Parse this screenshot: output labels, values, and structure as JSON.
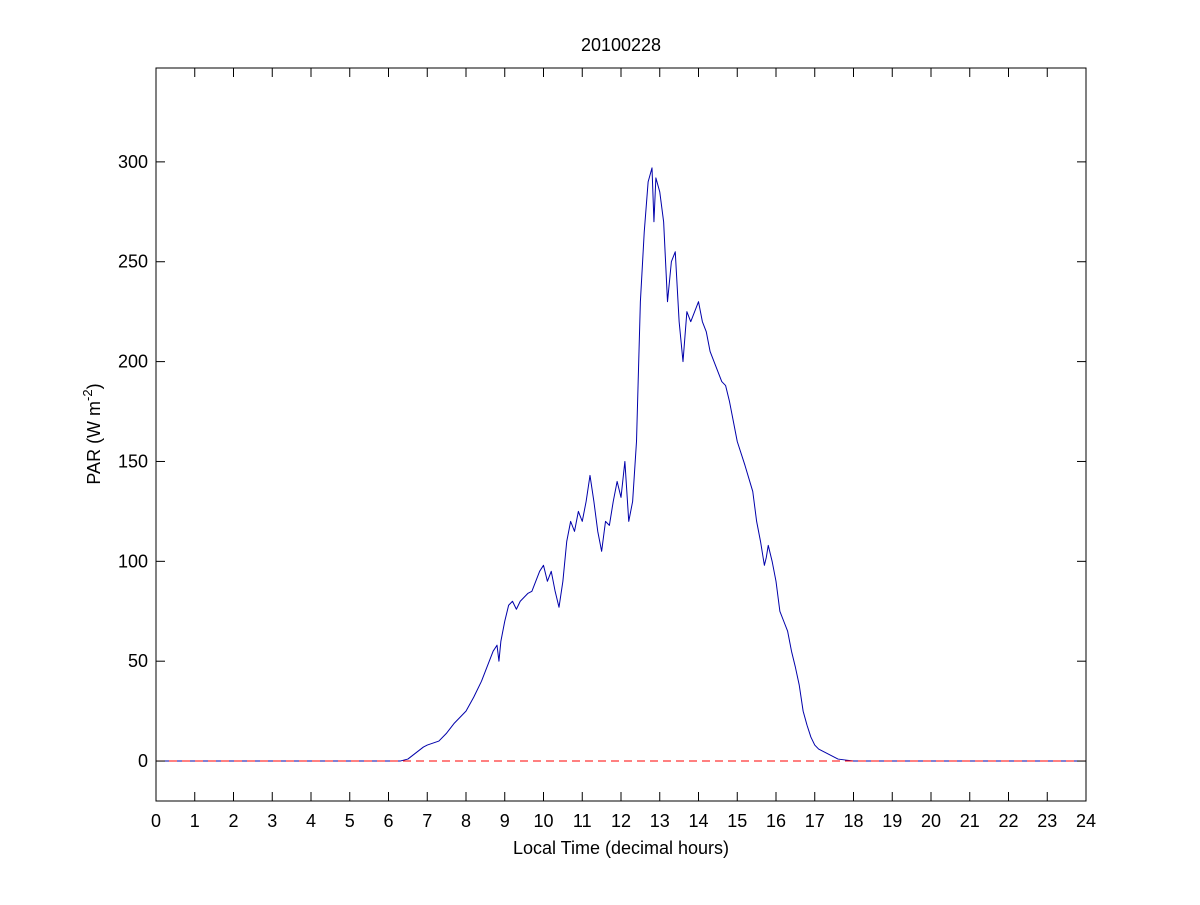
{
  "chart_data": {
    "type": "line",
    "title": "20100228",
    "xlabel": "Local Time (decimal hours)",
    "ylabel": {
      "main": "PAR (W m",
      "superscript": "-2",
      "close": ")"
    },
    "xlim": [
      0,
      24
    ],
    "ylim": [
      -20,
      347
    ],
    "xticks": [
      0,
      1,
      2,
      3,
      4,
      5,
      6,
      7,
      8,
      9,
      10,
      11,
      12,
      13,
      14,
      15,
      16,
      17,
      18,
      19,
      20,
      21,
      22,
      23,
      24
    ],
    "yticks": [
      0,
      50,
      100,
      150,
      200,
      250,
      300
    ],
    "grid": false,
    "legend": "none",
    "series": [
      {
        "color": "#0000aa",
        "style": "solid",
        "x": [
          0,
          6.0,
          6.3,
          6.5,
          6.7,
          6.9,
          7.0,
          7.3,
          7.5,
          7.7,
          8.0,
          8.2,
          8.4,
          8.5,
          8.6,
          8.7,
          8.8,
          8.85,
          8.9,
          9.0,
          9.1,
          9.2,
          9.3,
          9.4,
          9.5,
          9.6,
          9.7,
          9.8,
          9.9,
          10.0,
          10.1,
          10.2,
          10.3,
          10.4,
          10.5,
          10.6,
          10.7,
          10.8,
          10.9,
          11.0,
          11.1,
          11.2,
          11.3,
          11.4,
          11.5,
          11.6,
          11.7,
          11.8,
          11.9,
          12.0,
          12.1,
          12.2,
          12.3,
          12.4,
          12.5,
          12.6,
          12.7,
          12.8,
          12.85,
          12.9,
          13.0,
          13.1,
          13.2,
          13.3,
          13.4,
          13.5,
          13.6,
          13.7,
          13.8,
          13.9,
          14.0,
          14.1,
          14.2,
          14.3,
          14.4,
          14.5,
          14.6,
          14.7,
          14.8,
          14.9,
          15.0,
          15.2,
          15.4,
          15.5,
          15.6,
          15.7,
          15.75,
          15.8,
          15.9,
          16.0,
          16.1,
          16.2,
          16.3,
          16.4,
          16.5,
          16.6,
          16.7,
          16.8,
          16.9,
          17.0,
          17.1,
          17.2,
          17.4,
          17.6,
          17.8,
          18.0,
          18.3,
          19.0,
          24.0
        ],
        "y": [
          0,
          0,
          0,
          1,
          4,
          7,
          8,
          10,
          14,
          19,
          25,
          32,
          40,
          45,
          50,
          55,
          58,
          50,
          60,
          70,
          78,
          80,
          76,
          80,
          82,
          84,
          85,
          90,
          95,
          98,
          90,
          95,
          85,
          77,
          90,
          110,
          120,
          115,
          125,
          120,
          130,
          143,
          130,
          115,
          105,
          120,
          118,
          130,
          140,
          132,
          150,
          120,
          130,
          160,
          230,
          265,
          290,
          297,
          270,
          292,
          285,
          270,
          230,
          250,
          255,
          220,
          200,
          225,
          220,
          225,
          230,
          220,
          215,
          205,
          200,
          195,
          190,
          188,
          180,
          170,
          160,
          148,
          135,
          120,
          110,
          98,
          102,
          108,
          100,
          90,
          75,
          70,
          65,
          55,
          47,
          38,
          25,
          18,
          12,
          8,
          6,
          5,
          3,
          1,
          0.5,
          0,
          0,
          0,
          0
        ]
      },
      {
        "color": "#ff0000",
        "style": "dashed",
        "x": [
          0,
          24
        ],
        "y": [
          0,
          0
        ]
      }
    ]
  }
}
